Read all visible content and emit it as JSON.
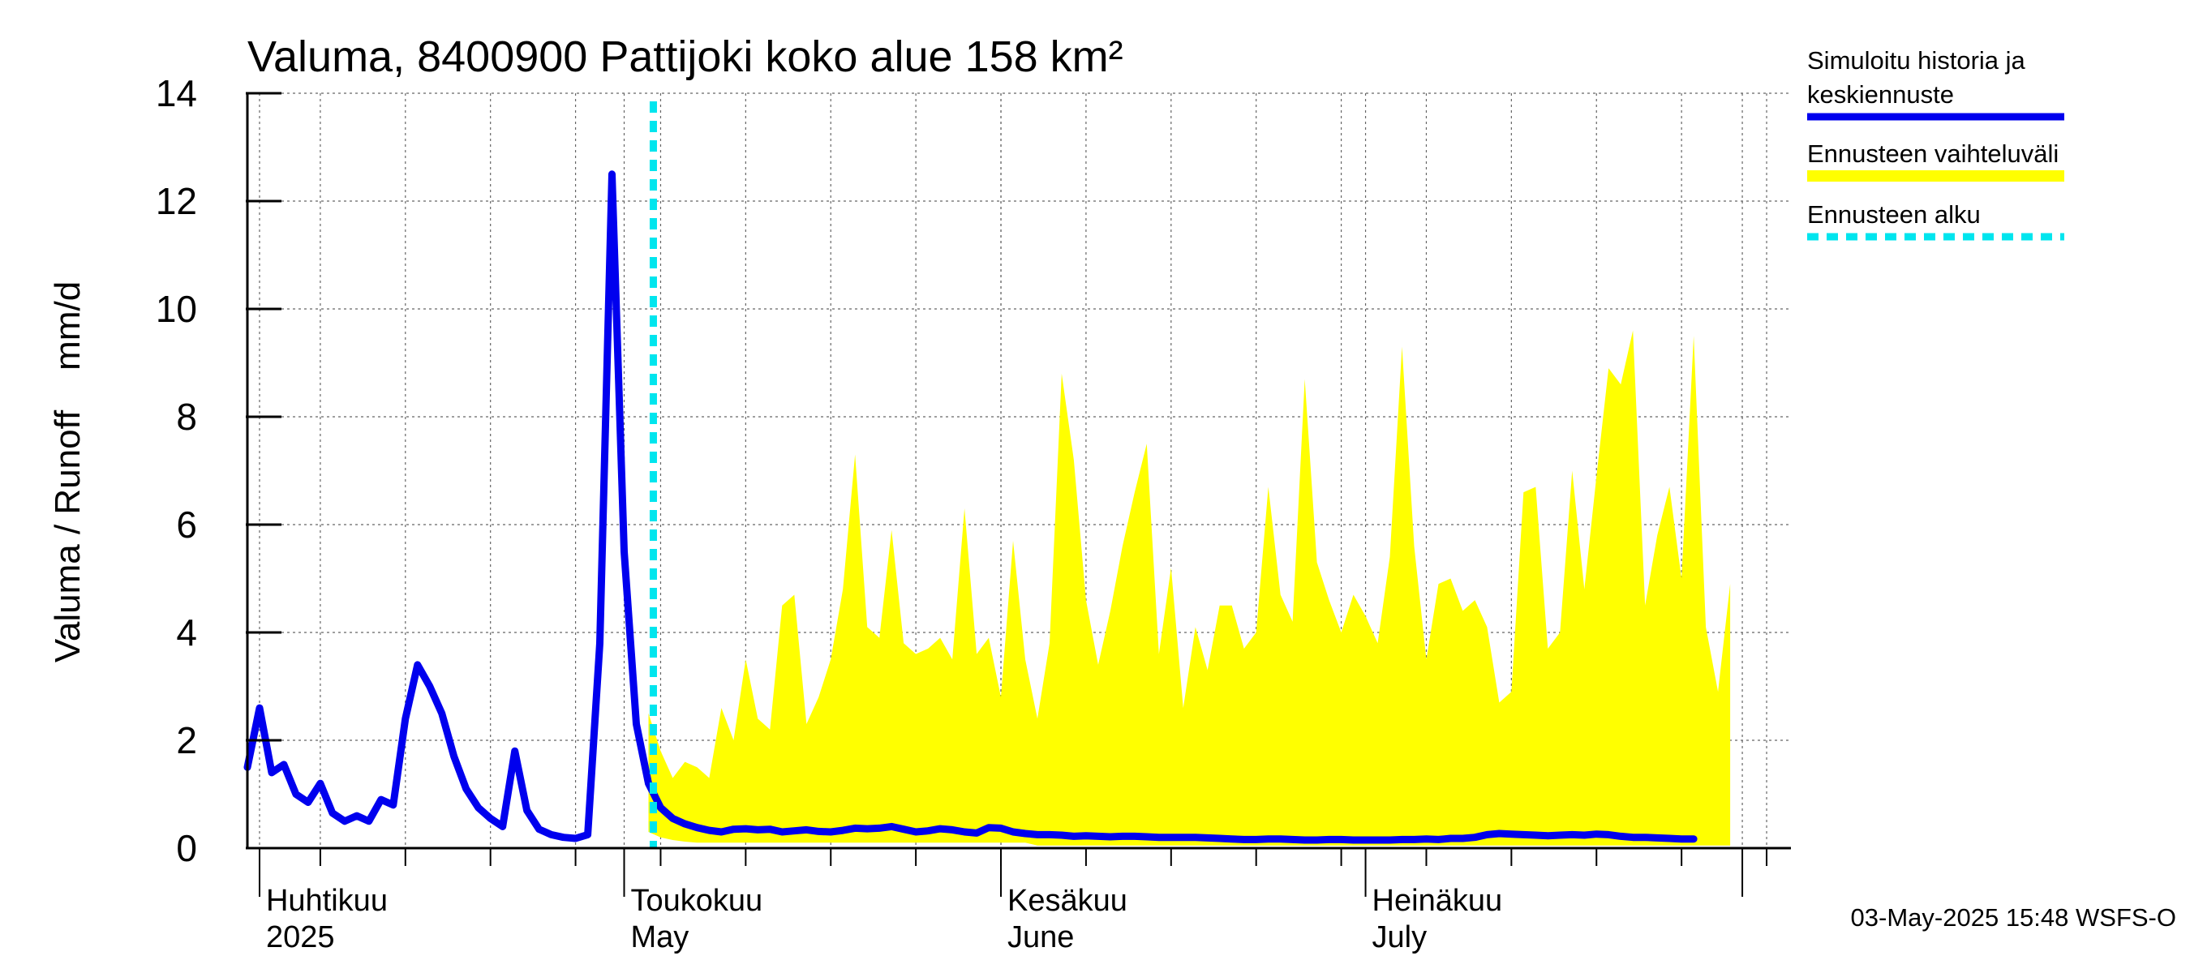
{
  "chart_data": {
    "type": "area",
    "title": "Valuma, 8400900 Pattijoki koko alue 158 km²",
    "ylabel": "Valuma / Runoff    mm/d",
    "ylim": [
      0,
      14
    ],
    "yticks": [
      "0",
      "2",
      "4",
      "6",
      "8",
      "10",
      "12",
      "14"
    ],
    "x_start": "2025-03-31",
    "x_end": "2025-08-05",
    "month_labels": [
      {
        "date": "2025-04-01",
        "line1": "Huhtikuu",
        "line2": "2025"
      },
      {
        "date": "2025-05-01",
        "line1": "Toukokuu",
        "line2": "May"
      },
      {
        "date": "2025-06-01",
        "line1": "Kesäkuu",
        "line2": "June"
      },
      {
        "date": "2025-07-01",
        "line1": "Heinäkuu",
        "line2": "July"
      }
    ],
    "forecast_start": "2025-05-03",
    "series": [
      {
        "name": "Simuloitu historia ja keskiennuste",
        "color": "#0000ee",
        "start": "2025-03-31",
        "values": [
          1.5,
          2.6,
          1.4,
          1.55,
          1.0,
          0.85,
          1.2,
          0.65,
          0.5,
          0.6,
          0.5,
          0.9,
          0.8,
          2.4,
          3.4,
          3.0,
          2.5,
          1.7,
          1.1,
          0.75,
          0.55,
          0.4,
          1.8,
          0.7,
          0.35,
          0.25,
          0.2,
          0.18,
          0.25,
          3.8,
          12.5,
          5.5,
          2.3,
          1.2,
          0.75,
          0.55,
          0.45,
          0.38,
          0.33,
          0.3,
          0.35,
          0.36,
          0.34,
          0.35,
          0.3,
          0.32,
          0.34,
          0.31,
          0.3,
          0.33,
          0.37,
          0.36,
          0.37,
          0.4,
          0.35,
          0.3,
          0.32,
          0.36,
          0.34,
          0.3,
          0.28,
          0.38,
          0.37,
          0.3,
          0.27,
          0.25,
          0.25,
          0.24,
          0.22,
          0.23,
          0.22,
          0.21,
          0.22,
          0.22,
          0.21,
          0.2,
          0.2,
          0.2,
          0.2,
          0.19,
          0.18,
          0.17,
          0.16,
          0.16,
          0.17,
          0.17,
          0.16,
          0.15,
          0.15,
          0.16,
          0.16,
          0.15,
          0.15,
          0.15,
          0.15,
          0.16,
          0.16,
          0.17,
          0.16,
          0.18,
          0.18,
          0.2,
          0.25,
          0.27,
          0.26,
          0.25,
          0.24,
          0.23,
          0.24,
          0.25,
          0.24,
          0.26,
          0.25,
          0.22,
          0.2,
          0.2,
          0.19,
          0.18,
          0.17,
          0.17
        ]
      },
      {
        "name": "Ennusteen vaihteluväli",
        "color": "#ffff00",
        "start": "2025-05-03",
        "upper": [
          2.5,
          1.8,
          1.3,
          1.6,
          1.5,
          1.3,
          2.6,
          2.0,
          3.5,
          2.4,
          2.2,
          4.5,
          4.7,
          2.3,
          2.8,
          3.5,
          4.8,
          7.3,
          4.1,
          3.9,
          5.9,
          3.8,
          3.6,
          3.7,
          3.9,
          3.5,
          6.3,
          3.6,
          3.9,
          2.8,
          5.7,
          3.5,
          2.4,
          3.8,
          8.8,
          7.2,
          4.6,
          3.4,
          4.4,
          5.6,
          6.6,
          7.5,
          3.6,
          5.2,
          2.6,
          4.1,
          3.3,
          4.5,
          4.5,
          3.7,
          4.0,
          6.7,
          4.7,
          4.2,
          8.7,
          5.3,
          4.6,
          4.0,
          4.7,
          4.3,
          3.8,
          5.4,
          9.3,
          5.6,
          3.5,
          4.9,
          5.0,
          4.4,
          4.6,
          4.1,
          2.7,
          2.9,
          6.6,
          6.7,
          3.7,
          4.0,
          7.0,
          4.8,
          6.9,
          8.9,
          8.6,
          9.6,
          4.5,
          5.8,
          6.7,
          5.0,
          9.5,
          4.1,
          2.9,
          4.9
        ],
        "lower": [
          0.3,
          0.2,
          0.15,
          0.12,
          0.1,
          0.1,
          0.1,
          0.1,
          0.1,
          0.1,
          0.1,
          0.1,
          0.1,
          0.1,
          0.1,
          0.1,
          0.1,
          0.1,
          0.1,
          0.1,
          0.1,
          0.1,
          0.1,
          0.1,
          0.1,
          0.1,
          0.1,
          0.1,
          0.1,
          0.1,
          0.1,
          0.1,
          0.05,
          0.05,
          0.05,
          0.05,
          0.05,
          0.05,
          0.05,
          0.05,
          0.05,
          0.05,
          0.05,
          0.05,
          0.05,
          0.05,
          0.05,
          0.05,
          0.05,
          0.05,
          0.05,
          0.05,
          0.05,
          0.05,
          0.05,
          0.05,
          0.05,
          0.05,
          0.05,
          0.05,
          0.05,
          0.05,
          0.05,
          0.05,
          0.05,
          0.05,
          0.05,
          0.05,
          0.05,
          0.05,
          0.05,
          0.05,
          0.05,
          0.05,
          0.05,
          0.05,
          0.05,
          0.05,
          0.05,
          0.05,
          0.05,
          0.05,
          0.05,
          0.05,
          0.05,
          0.05,
          0.05,
          0.05,
          0.05,
          0.05
        ]
      },
      {
        "name": "Ennusteen alku",
        "color": "#00e5ee"
      }
    ],
    "legend": [
      {
        "label_line1": "Simuloitu historia ja",
        "label_line2": "keskiennuste",
        "color": "#0000ee",
        "style": "solid"
      },
      {
        "label_line1": "Ennusteen vaihteluväli",
        "label_line2": "",
        "color": "#ffff00",
        "style": "solid"
      },
      {
        "label_line1": "Ennusteen alku",
        "label_line2": "",
        "color": "#00e5ee",
        "style": "dashed"
      }
    ],
    "legend_position": "right",
    "footer": "03-May-2025 15:48 WSFS-O",
    "grid": true
  }
}
